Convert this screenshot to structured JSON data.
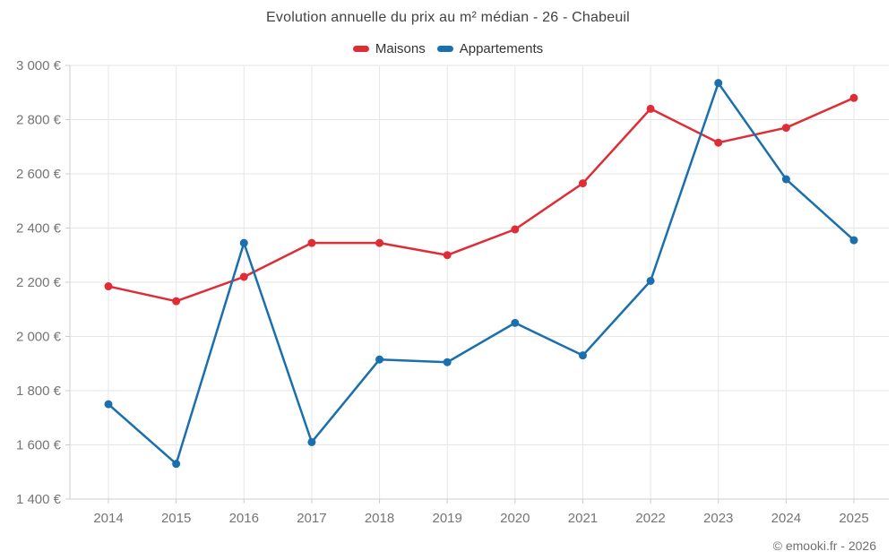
{
  "header": {
    "title": "Evolution annuelle du prix au m² médian - 26 - Chabeuil"
  },
  "legend": {
    "items": [
      {
        "label": "Maisons",
        "color": "#df2d36"
      },
      {
        "label": "Appartements",
        "color": "#1a6fad"
      }
    ]
  },
  "footer": {
    "credit": "© emooki.fr - 2026"
  },
  "chart_data": {
    "type": "line",
    "title": "Evolution annuelle du prix au m² médian - 26 - Chabeuil",
    "categories": [
      "2014",
      "2015",
      "2016",
      "2017",
      "2018",
      "2019",
      "2020",
      "2021",
      "2022",
      "2023",
      "2024",
      "2025"
    ],
    "series": [
      {
        "name": "Maisons",
        "color": "#df2d36",
        "values": [
          2185,
          2130,
          2220,
          2345,
          2345,
          2300,
          2395,
          2565,
          2840,
          2715,
          2770,
          2880
        ]
      },
      {
        "name": "Appartements",
        "color": "#1a6fad",
        "values": [
          1750,
          1530,
          2345,
          1610,
          1915,
          1905,
          2050,
          1930,
          2205,
          2935,
          2580,
          2355
        ]
      }
    ],
    "xlabel": "",
    "ylabel": "",
    "ylim": [
      1400,
      3000
    ],
    "ytick_step": 200,
    "ytick_labels": [
      "1 400 €",
      "1 600 €",
      "1 800 €",
      "2 000 €",
      "2 200 €",
      "2 400 €",
      "2 600 €",
      "2 800 €",
      "3 000 €"
    ],
    "y_unit": "€",
    "grid": true,
    "legend_position": "top",
    "marker": "circle"
  }
}
